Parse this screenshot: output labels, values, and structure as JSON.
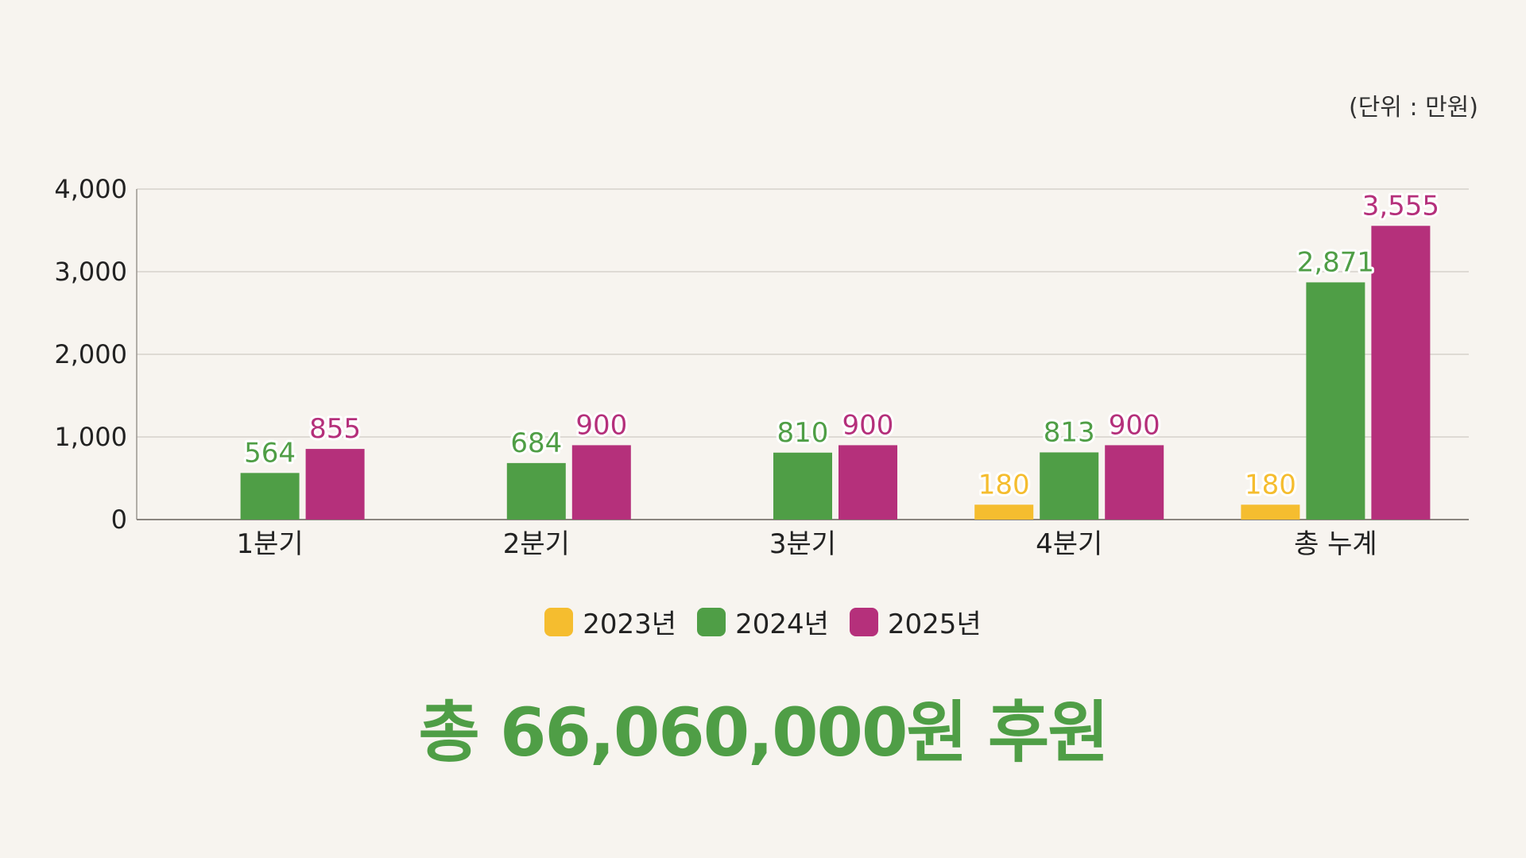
{
  "unit_label": "(단위 : 만원)",
  "total_text": "총 66,060,000원 후원",
  "chart_data": {
    "type": "bar",
    "categories": [
      "1분기",
      "2분기",
      "3분기",
      "4분기",
      "총 누계"
    ],
    "series": [
      {
        "name": "2023년",
        "color": "#f5bd2f",
        "values": [
          null,
          null,
          null,
          180,
          180
        ]
      },
      {
        "name": "2024년",
        "color": "#4f9e46",
        "values": [
          564,
          684,
          810,
          813,
          2871
        ]
      },
      {
        "name": "2025년",
        "color": "#b5307b",
        "values": [
          855,
          900,
          900,
          900,
          3555
        ]
      }
    ],
    "yticks": [
      0,
      1000,
      2000,
      3000,
      4000
    ],
    "ylim": [
      0,
      4000
    ],
    "grid": true,
    "legend": "bottom"
  }
}
